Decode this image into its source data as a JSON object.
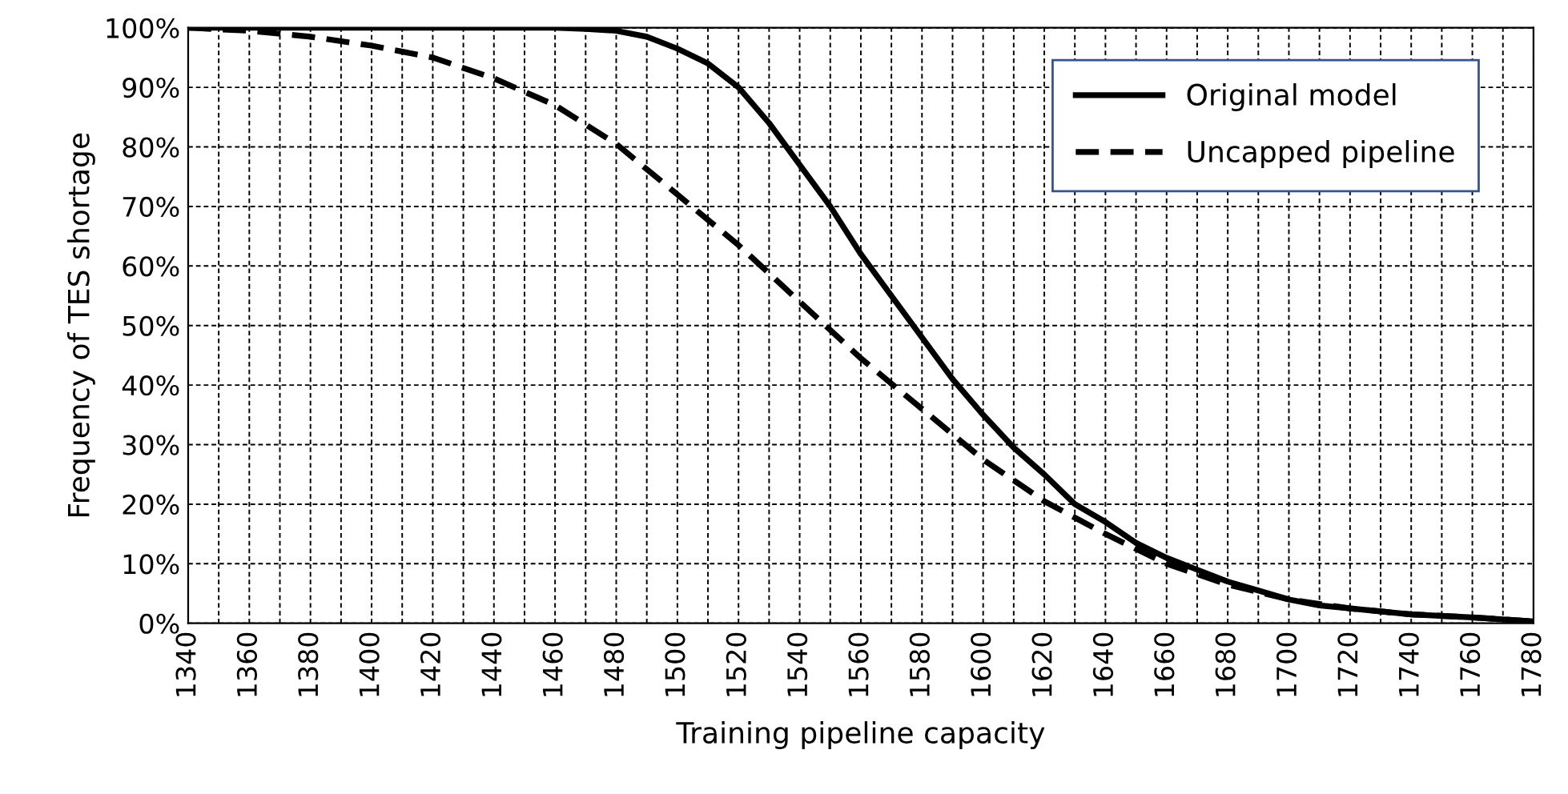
{
  "chart_data": {
    "type": "line",
    "xlabel": "Training pipeline capacity",
    "ylabel": "Frequency of TES shortage",
    "xlim": [
      1340,
      1780
    ],
    "ylim": [
      0,
      100
    ],
    "xticks": [
      1340,
      {
        "value": 1350,
        "label": null
      },
      1360,
      {
        "value": 1370,
        "label": null
      },
      1380,
      {
        "value": 1390,
        "label": null
      },
      1400,
      {
        "value": 1410,
        "label": null
      },
      1420,
      {
        "value": 1430,
        "label": null
      },
      1440,
      {
        "value": 1450,
        "label": null
      },
      1460,
      {
        "value": 1470,
        "label": null
      },
      1480,
      {
        "value": 1490,
        "label": null
      },
      1500,
      {
        "value": 1510,
        "label": null
      },
      1520,
      {
        "value": 1530,
        "label": null
      },
      1540,
      {
        "value": 1550,
        "label": null
      },
      1560,
      {
        "value": 1570,
        "label": null
      },
      1580,
      {
        "value": 1590,
        "label": null
      },
      1600,
      {
        "value": 1610,
        "label": null
      },
      1620,
      {
        "value": 1630,
        "label": null
      },
      1640,
      {
        "value": 1650,
        "label": null
      },
      1660,
      {
        "value": 1670,
        "label": null
      },
      1680,
      {
        "value": 1690,
        "label": null
      },
      1700,
      {
        "value": 1710,
        "label": null
      },
      1720,
      {
        "value": 1730,
        "label": null
      },
      1740,
      {
        "value": 1750,
        "label": null
      },
      1760,
      {
        "value": 1770,
        "label": null
      },
      1780
    ],
    "yticks": [
      {
        "value": 0,
        "label": "0%"
      },
      {
        "value": 10,
        "label": "10%"
      },
      {
        "value": 20,
        "label": "20%"
      },
      {
        "value": 30,
        "label": "30%"
      },
      {
        "value": 40,
        "label": "40%"
      },
      {
        "value": 50,
        "label": "50%"
      },
      {
        "value": 60,
        "label": "60%"
      },
      {
        "value": 70,
        "label": "70%"
      },
      {
        "value": 80,
        "label": "80%"
      },
      {
        "value": 90,
        "label": "90%"
      },
      {
        "value": 100,
        "label": "100%"
      }
    ],
    "grid": true,
    "legend": "top right",
    "marker": "none",
    "series": [
      {
        "name": "Original model",
        "color": "#000000",
        "line_style": "solid",
        "x": [
          1340,
          1460,
          1470,
          1480,
          1490,
          1500,
          1510,
          1520,
          1530,
          1540,
          1550,
          1560,
          1570,
          1580,
          1590,
          1600,
          1610,
          1620,
          1630,
          1640,
          1650,
          1660,
          1670,
          1680,
          1690,
          1700,
          1710,
          1720,
          1740,
          1760,
          1780
        ],
        "values": [
          100,
          100,
          99.8,
          99.5,
          98.5,
          96.5,
          94,
          90,
          84,
          77,
          70,
          62,
          55,
          48,
          41,
          35,
          29.5,
          25,
          20,
          17,
          13.5,
          11,
          9,
          7,
          5.5,
          4,
          3,
          2.5,
          1.5,
          1,
          0.3
        ]
      },
      {
        "name": "Uncapped pipeline",
        "color": "#000000",
        "line_style": "dashed",
        "x": [
          1340,
          1360,
          1380,
          1400,
          1420,
          1440,
          1460,
          1480,
          1500,
          1520,
          1540,
          1560,
          1580,
          1600,
          1620,
          1640,
          1660,
          1680,
          1700,
          1720,
          1740,
          1760,
          1780
        ],
        "values": [
          100,
          99.5,
          98.5,
          97,
          95,
          91.5,
          87,
          80.5,
          72,
          63.5,
          54,
          44.5,
          36,
          27.5,
          20.5,
          15,
          10,
          6.5,
          4,
          2.5,
          1.5,
          1,
          0.3
        ]
      }
    ]
  }
}
